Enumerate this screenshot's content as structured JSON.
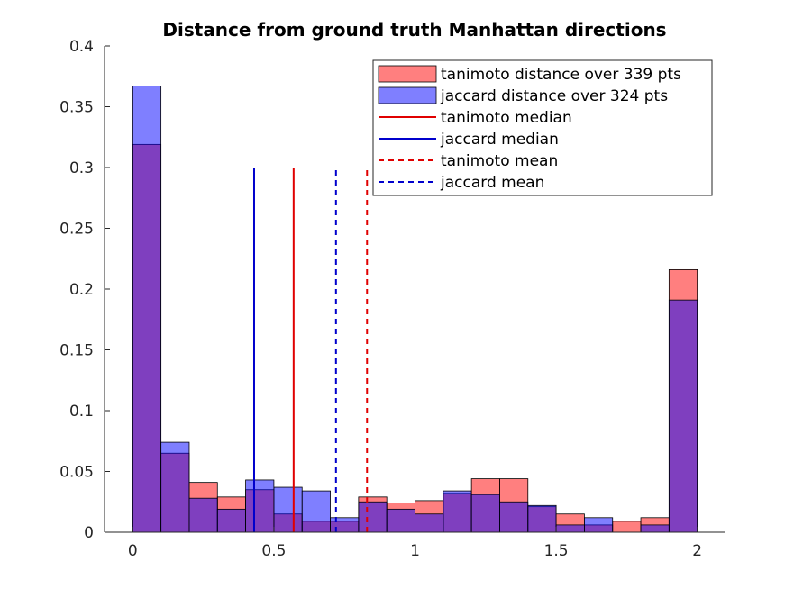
{
  "chart_data": {
    "type": "bar",
    "title": "Distance from ground truth Manhattan directions",
    "xlabel": "",
    "ylabel": "",
    "xlim": [
      -0.1,
      2.1
    ],
    "ylim": [
      0,
      0.4
    ],
    "xticks": [
      0,
      0.5,
      1,
      1.5,
      2
    ],
    "xtick_labels": [
      "0",
      "0.5",
      "1",
      "1.5",
      "2"
    ],
    "yticks": [
      0,
      0.05,
      0.1,
      0.15,
      0.2,
      0.25,
      0.3,
      0.35,
      0.4
    ],
    "ytick_labels": [
      "0",
      "0.05",
      "0.1",
      "0.15",
      "0.2",
      "0.25",
      "0.3",
      "0.35",
      "0.4"
    ],
    "grid": false,
    "legend_position": "top-right",
    "bin_edges": [
      0,
      0.1,
      0.2,
      0.3,
      0.4,
      0.5,
      0.6,
      0.7,
      0.8,
      0.9,
      1.0,
      1.1,
      1.2,
      1.3,
      1.4,
      1.5,
      1.6,
      1.7,
      1.8,
      1.9,
      2.0
    ],
    "series": [
      {
        "name": "tanimoto distance over 339 pts",
        "kind": "histogram",
        "color": "#ff0000",
        "alpha": 0.5,
        "values": [
          0.319,
          0.065,
          0.041,
          0.029,
          0.035,
          0.015,
          0.009,
          0.009,
          0.029,
          0.024,
          0.026,
          0.032,
          0.044,
          0.044,
          0.021,
          0.015,
          0.006,
          0.009,
          0.012,
          0.216
        ]
      },
      {
        "name": "jaccard distance over 324 pts",
        "kind": "histogram",
        "color": "#0000ff",
        "alpha": 0.5,
        "values": [
          0.367,
          0.074,
          0.028,
          0.019,
          0.043,
          0.037,
          0.034,
          0.012,
          0.025,
          0.019,
          0.015,
          0.034,
          0.031,
          0.025,
          0.022,
          0.006,
          0.012,
          0.0,
          0.006,
          0.191
        ]
      }
    ],
    "vlines": [
      {
        "name": "tanimoto median",
        "x": 0.57,
        "y_top": 0.3,
        "color": "#e00000",
        "style": "solid"
      },
      {
        "name": "jaccard median",
        "x": 0.43,
        "y_top": 0.3,
        "color": "#0000cc",
        "style": "solid"
      },
      {
        "name": "tanimoto mean",
        "x": 0.83,
        "y_top": 0.3,
        "color": "#e00000",
        "style": "dashed"
      },
      {
        "name": "jaccard mean",
        "x": 0.72,
        "y_top": 0.3,
        "color": "#0000cc",
        "style": "dashed"
      }
    ],
    "overlap_color": "#7f3fbf"
  }
}
